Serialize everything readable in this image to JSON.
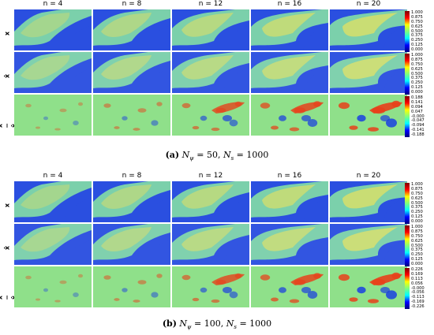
{
  "column_headers": [
    "n = 4",
    "n = 8",
    "n = 12",
    "n = 16",
    "n = 20"
  ],
  "row_labels": [
    "x",
    "x̂",
    "x − x̂"
  ],
  "panels": [
    {
      "id": "a",
      "caption_letter": "(a)",
      "caption_text": "N_ψ = 50, N_s = 1000",
      "caption_parts": {
        "p1": "N",
        "p1sub": "ψ",
        "p2": " = 50, ",
        "p3": "N",
        "p3sub": "s",
        "p4": " = 1000"
      },
      "colorbars": [
        {
          "ticks": [
            "1.000",
            "0.875",
            "0.750",
            "0.625",
            "0.500",
            "0.375",
            "0.250",
            "0.125",
            "0.000"
          ]
        },
        {
          "ticks": [
            "1.000",
            "0.875",
            "0.750",
            "0.625",
            "0.500",
            "0.375",
            "0.250",
            "0.125",
            "0.000"
          ]
        },
        {
          "ticks": [
            "0.188",
            "0.141",
            "0.094",
            "0.047",
            "-0.000",
            "-0.047",
            "-0.094",
            "-0.141",
            "-0.188"
          ]
        }
      ]
    },
    {
      "id": "b",
      "caption_letter": "(b)",
      "caption_text": "N_ψ = 100, N_s = 1000",
      "caption_parts": {
        "p1": "N",
        "p1sub": "ψ",
        "p2": " = 100, ",
        "p3": "N",
        "p3sub": "s",
        "p4": " = 1000"
      },
      "colorbars": [
        {
          "ticks": [
            "1.000",
            "0.875",
            "0.750",
            "0.625",
            "0.500",
            "0.375",
            "0.250",
            "0.125",
            "0.000"
          ]
        },
        {
          "ticks": [
            "1.000",
            "0.875",
            "0.750",
            "0.625",
            "0.500",
            "0.375",
            "0.250",
            "0.125",
            "0.000"
          ]
        },
        {
          "ticks": [
            "0.226",
            "0.169",
            "0.113",
            "0.056",
            "-0.000",
            "-0.056",
            "-0.113",
            "-0.169",
            "-0.226"
          ]
        }
      ]
    }
  ],
  "colors": {
    "field_low": "#2a4fe0",
    "field_mid": "#7fd7a8",
    "field_high": "#f0e25a",
    "err_bg": "#8fe08a",
    "err_pos": "#e8401a",
    "err_neg": "#1a3fe0",
    "jet_stops": [
      "#00007f",
      "#0000ff",
      "#00ffff",
      "#7fff7f",
      "#ffff00",
      "#ff0000",
      "#7f0000"
    ]
  }
}
